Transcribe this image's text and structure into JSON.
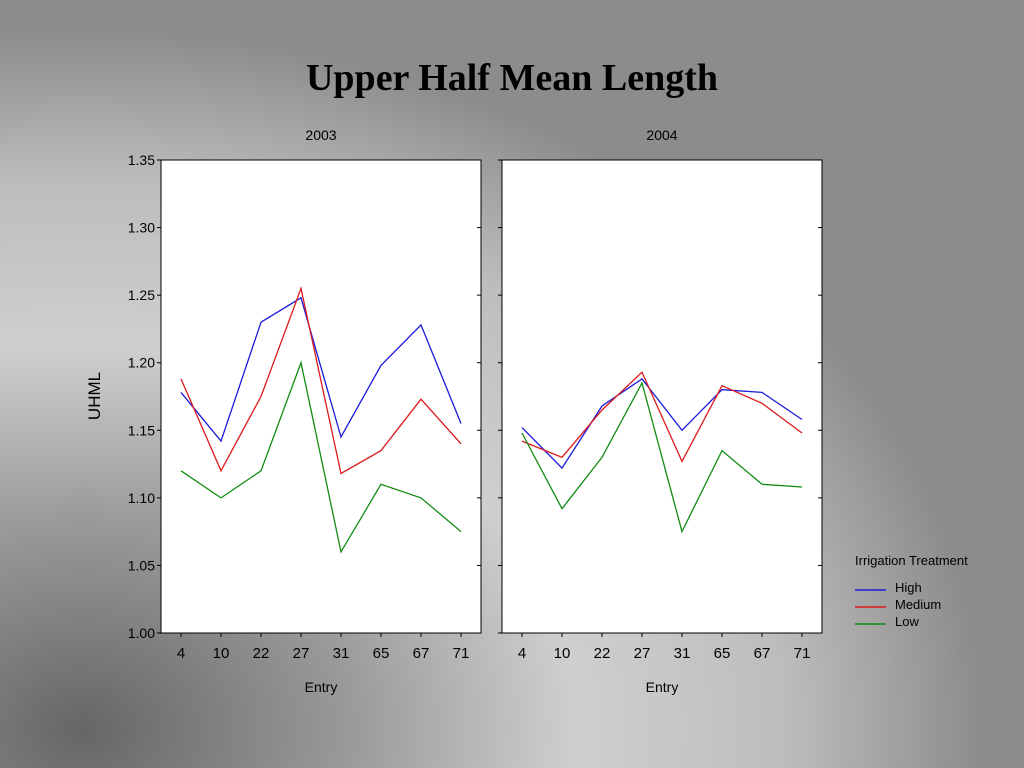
{
  "slide": {
    "title": "Upper Half Mean Length"
  },
  "chart_data": {
    "type": "line",
    "ylabel": "UHML",
    "ylim": [
      1.0,
      1.35
    ],
    "yticks": [
      "1.00",
      "1.05",
      "1.10",
      "1.15",
      "1.20",
      "1.25",
      "1.30",
      "1.35"
    ],
    "legend": {
      "title": "Irrigation Treatment",
      "placement": "right"
    },
    "colors": {
      "High": "#1a1adc",
      "Medium": "#dc1a1a",
      "Low": "#128c12"
    },
    "panels": [
      {
        "title": "2003",
        "xlabel": "Entry",
        "categories": [
          "4",
          "10",
          "22",
          "27",
          "31",
          "65",
          "67",
          "71"
        ],
        "series": [
          {
            "name": "High",
            "values": [
              1.178,
              1.142,
              1.23,
              1.248,
              1.145,
              1.198,
              1.228,
              1.155
            ]
          },
          {
            "name": "Medium",
            "values": [
              1.188,
              1.12,
              1.175,
              1.255,
              1.118,
              1.135,
              1.173,
              1.14
            ]
          },
          {
            "name": "Low",
            "values": [
              1.12,
              1.1,
              1.12,
              1.2,
              1.06,
              1.11,
              1.1,
              1.075
            ]
          }
        ]
      },
      {
        "title": "2004",
        "xlabel": "Entry",
        "categories": [
          "4",
          "10",
          "22",
          "27",
          "31",
          "65",
          "67",
          "71"
        ],
        "series": [
          {
            "name": "High",
            "values": [
              1.152,
              1.122,
              1.168,
              1.188,
              1.15,
              1.18,
              1.178,
              1.158
            ]
          },
          {
            "name": "Medium",
            "values": [
              1.142,
              1.13,
              1.165,
              1.193,
              1.127,
              1.183,
              1.17,
              1.148
            ]
          },
          {
            "name": "Low",
            "values": [
              1.148,
              1.092,
              1.13,
              1.185,
              1.075,
              1.135,
              1.11,
              1.108
            ]
          }
        ]
      }
    ]
  }
}
